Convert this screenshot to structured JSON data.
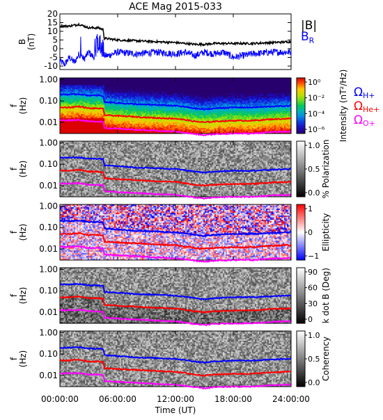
{
  "title": "ACE Mag 2015-033",
  "colors": {
    "bmag": "#000000",
    "br": "#0000ff",
    "gyro_h": "#0000ff",
    "gyro_he": "#ff0000",
    "gyro_o": "#ff00ff"
  },
  "chart_data": {
    "type": "multi-panel spectrogram + line",
    "x_axis": {
      "label": "Time (UT)",
      "range_hours": [
        0,
        24
      ],
      "ticks": [
        "00:00:00",
        "06:00:00",
        "12:00:00",
        "18:00:00",
        "24:00:00"
      ]
    },
    "b_panel": {
      "ylabel": "B (nT)",
      "ylim": [
        -12,
        20
      ],
      "yticks": [
        "20",
        "15",
        "10",
        "5",
        "0",
        "-5",
        "-10"
      ],
      "legend": [
        "|B|",
        "BR"
      ],
      "series": [
        {
          "name": "|B|",
          "x": [
            0,
            1,
            2,
            3,
            4,
            4.5,
            4.6,
            6,
            8,
            10,
            12,
            14,
            15,
            16,
            18,
            20,
            22,
            24
          ],
          "values": [
            13,
            13,
            14,
            12,
            12,
            11,
            6,
            5,
            4.5,
            4,
            3.5,
            2.5,
            2.5,
            3,
            3,
            3,
            3.5,
            4
          ]
        },
        {
          "name": "BR",
          "x": [
            0,
            0.5,
            1,
            1.5,
            2,
            2.5,
            3,
            3.5,
            4,
            4.5,
            5,
            6,
            8,
            10,
            12,
            13,
            14,
            15,
            16,
            17,
            18,
            20,
            22,
            24
          ],
          "values": [
            -7,
            -9,
            -5,
            -8,
            -3,
            -6,
            -2,
            -5,
            0,
            -4,
            -4,
            -2,
            -3,
            -2,
            -3,
            -2,
            -4,
            -2,
            -3,
            -2,
            -5,
            -3,
            -2,
            -2
          ]
        }
      ]
    },
    "gyrofrequencies_hz": {
      "x": [
        0,
        1,
        2,
        3,
        4,
        4.5,
        4.6,
        6,
        8,
        10,
        12,
        14,
        15,
        16,
        18,
        20,
        22,
        24
      ],
      "H+": [
        0.2,
        0.2,
        0.21,
        0.18,
        0.18,
        0.17,
        0.09,
        0.08,
        0.07,
        0.065,
        0.06,
        0.045,
        0.04,
        0.045,
        0.05,
        0.05,
        0.055,
        0.06
      ],
      "He+": [
        0.05,
        0.05,
        0.055,
        0.045,
        0.045,
        0.042,
        0.022,
        0.02,
        0.018,
        0.016,
        0.015,
        0.011,
        0.01,
        0.011,
        0.012,
        0.012,
        0.014,
        0.015
      ],
      "O+": [
        0.0125,
        0.0125,
        0.013,
        0.011,
        0.011,
        0.0105,
        0.0055,
        0.005,
        0.0045,
        0.004,
        0.0037,
        0.0028,
        0.0025,
        0.0028,
        0.003,
        0.003,
        0.0035,
        0.0037
      ]
    },
    "f_axis": {
      "ylabel": "f (Hz)",
      "log": true,
      "ylim": [
        0.003,
        1.2
      ],
      "ticks": [
        "1.00",
        "0.10",
        "0.01"
      ]
    },
    "spectrogram_panels": [
      {
        "name": "Intensity",
        "colorbar_label": "Intensity (nT²/Hz)",
        "colormap": "rainbow",
        "colorbar_ticks": [
          "10⁰",
          "10⁻²",
          "10⁻⁴",
          "10⁻⁶"
        ],
        "legend": [
          "ΩH+",
          "ΩHe+",
          "ΩO+"
        ]
      },
      {
        "name": "% Polarization",
        "colorbar_label": "% Polarization",
        "colormap": "gray",
        "colorbar_ticks": [
          "1.0",
          "0.5",
          "0.0"
        ]
      },
      {
        "name": "Ellipticity",
        "colorbar_label": "Ellipticity",
        "colormap": "bwr",
        "colorbar_ticks": [
          "1",
          "0",
          "−1"
        ]
      },
      {
        "name": "k dot B",
        "colorbar_label": "k dot B (Deg)",
        "colormap": "gray",
        "colorbar_ticks": [
          "90",
          "60",
          "30",
          "0"
        ]
      },
      {
        "name": "Coherency",
        "colorbar_label": "Coherency",
        "colormap": "gray",
        "colorbar_ticks": [
          "1.0",
          "0.5",
          "0.0"
        ]
      }
    ]
  }
}
